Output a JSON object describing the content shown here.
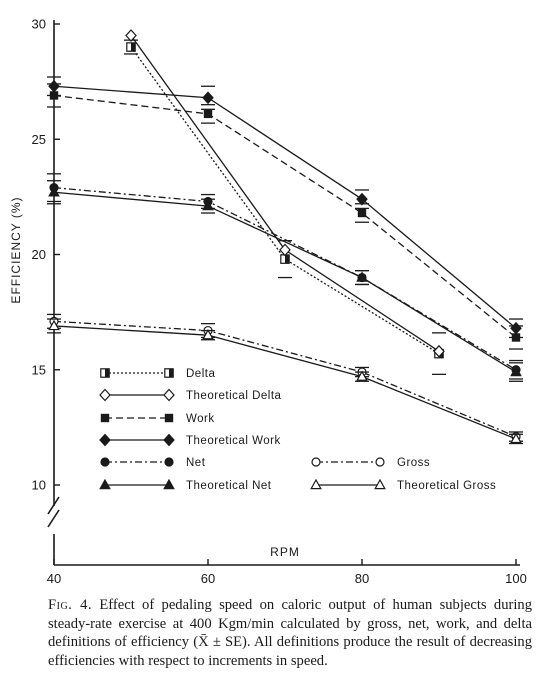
{
  "chart_data": {
    "type": "line",
    "xlabel": "RPM",
    "ylabel": "EFFICIENCY (%)",
    "xlim": [
      40,
      100
    ],
    "ylim": [
      10,
      30
    ],
    "x_ticks": [
      "40",
      "60",
      "80",
      "100"
    ],
    "y_ticks": [
      "10",
      "15",
      "20",
      "25",
      "30"
    ],
    "grid": false,
    "legend_placement": "lower-left inside plot",
    "series": [
      {
        "name": "Delta",
        "marker": "half-square",
        "dash": "2,2",
        "x": [
          50,
          70,
          90
        ],
        "y": [
          29.0,
          19.8,
          15.7
        ],
        "se": [
          0.3,
          0.8,
          0.9
        ]
      },
      {
        "name": "Theoretical Delta",
        "marker": "open-diamond",
        "dash": "",
        "x": [
          50,
          70,
          90
        ],
        "y": [
          29.5,
          20.2,
          15.8
        ],
        "se": [
          0.0,
          0.0,
          0.0
        ]
      },
      {
        "name": "Work",
        "marker": "filled-square",
        "dash": "7,4",
        "x": [
          40,
          60,
          80,
          100
        ],
        "y": [
          26.9,
          26.1,
          21.8,
          16.4
        ],
        "se": [
          0.5,
          0.4,
          0.4,
          0.5
        ]
      },
      {
        "name": "Theoretical Work",
        "marker": "filled-diamond",
        "dash": "",
        "x": [
          40,
          60,
          80,
          100
        ],
        "y": [
          27.3,
          26.8,
          22.4,
          16.8
        ],
        "se": [
          0.4,
          0.5,
          0.4,
          0.4
        ]
      },
      {
        "name": "Net",
        "marker": "filled-circle",
        "dash": "7,3,2,3",
        "x": [
          40,
          60,
          80,
          100
        ],
        "y": [
          22.9,
          22.3,
          19.0,
          15.0
        ],
        "se": [
          0.6,
          0.3,
          0.3,
          0.4
        ]
      },
      {
        "name": "Theoretical Net",
        "marker": "filled-triangle",
        "dash": "",
        "x": [
          40,
          60,
          80,
          100
        ],
        "y": [
          22.7,
          22.1,
          19.0,
          14.9
        ],
        "se": [
          0.5,
          0.3,
          0.3,
          0.4
        ]
      },
      {
        "name": "Gross",
        "marker": "open-circle",
        "dash": "7,3,2,3",
        "x": [
          40,
          60,
          80,
          100
        ],
        "y": [
          17.1,
          16.7,
          14.9,
          12.1
        ],
        "se": [
          0.3,
          0.3,
          0.2,
          0.2
        ]
      },
      {
        "name": "Theoretical Gross",
        "marker": "open-triangle",
        "dash": "",
        "x": [
          40,
          60,
          80,
          100
        ],
        "y": [
          16.9,
          16.5,
          14.7,
          12.0
        ],
        "se": [
          0.3,
          0.2,
          0.2,
          0.2
        ]
      }
    ]
  },
  "caption": {
    "label": "Fig. 4.",
    "text": " Effect of pedaling speed on caloric output of human subjects during steady-rate exercise at 400 Kgm/min calculated by gross, net, work, and delta definitions of efficiency (X̄ ± SE). All definitions produce the result of decreasing efficiencies with respect to increments in speed."
  }
}
